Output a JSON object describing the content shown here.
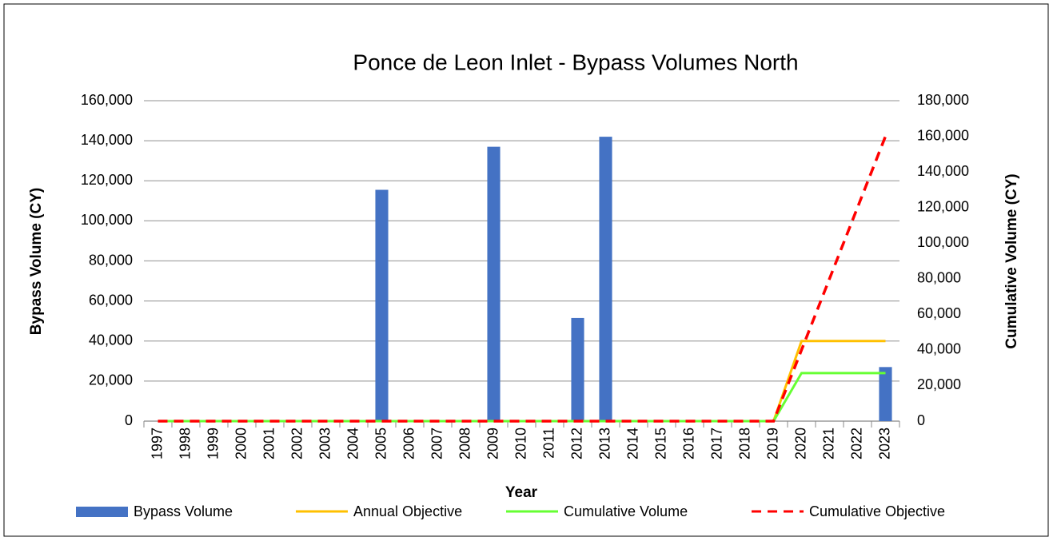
{
  "chart_data": {
    "type": "bar",
    "title": "Ponce de Leon Inlet - Bypass Volumes North",
    "x_label": "Year",
    "y_label": "Bypass Volume (CY)",
    "y2_label": "Cumulative Volume (CY)",
    "categories": [
      "1997",
      "1998",
      "1999",
      "2000",
      "2001",
      "2002",
      "2003",
      "2004",
      "2005",
      "2006",
      "2007",
      "2008",
      "2009",
      "2010",
      "2011",
      "2012",
      "2013",
      "2014",
      "2015",
      "2016",
      "2017",
      "2018",
      "2019",
      "2020",
      "2021",
      "2022",
      "2023"
    ],
    "series": [
      {
        "name": "Bypass Volume",
        "type": "bar",
        "color": "#4472c4",
        "values": [
          0,
          0,
          0,
          0,
          0,
          0,
          0,
          0,
          115500,
          0,
          0,
          0,
          137000,
          0,
          0,
          51500,
          142000,
          0,
          0,
          0,
          0,
          0,
          0,
          0,
          0,
          0,
          27000
        ]
      },
      {
        "name": "Annual Objective",
        "type": "line",
        "color": "#ffc000",
        "values": [
          0,
          0,
          0,
          0,
          0,
          0,
          0,
          0,
          0,
          0,
          0,
          0,
          0,
          0,
          0,
          0,
          0,
          0,
          0,
          0,
          0,
          0,
          0,
          40000,
          40000,
          40000,
          40000
        ]
      },
      {
        "name": "Cumulative Volume",
        "type": "line",
        "axis": "y2",
        "color": "#66ff33",
        "values": [
          0,
          0,
          0,
          0,
          0,
          0,
          0,
          0,
          0,
          0,
          0,
          0,
          0,
          0,
          0,
          0,
          0,
          0,
          0,
          0,
          0,
          0,
          0,
          27000,
          27000,
          27000,
          27000
        ]
      },
      {
        "name": "Cumulative Objective",
        "type": "line",
        "axis": "y2",
        "dashed": true,
        "color": "#ff0000",
        "values": [
          0,
          0,
          0,
          0,
          0,
          0,
          0,
          0,
          0,
          0,
          0,
          0,
          0,
          0,
          0,
          0,
          0,
          0,
          0,
          0,
          0,
          0,
          0,
          40000,
          80000,
          120000,
          160000
        ]
      }
    ],
    "ylim": [
      0,
      160000
    ],
    "yticks": [
      0,
      {
        "value": 20000,
        "label": "20,000"
      },
      {
        "value": 40000,
        "label": "40,000"
      },
      {
        "value": 60000,
        "label": "60,000"
      },
      {
        "value": 80000,
        "label": "80,000"
      },
      {
        "value": 100000,
        "label": "100,000"
      },
      {
        "value": 120000,
        "label": "120,000"
      },
      {
        "value": 140000,
        "label": "140,000"
      },
      {
        "value": 160000,
        "label": "160,000"
      }
    ],
    "y2lim": [
      0,
      180000
    ],
    "y2ticks": [
      0,
      {
        "value": 20000,
        "label": "20,000"
      },
      {
        "value": 40000,
        "label": "40,000"
      },
      {
        "value": 60000,
        "label": "60,000"
      },
      {
        "value": 80000,
        "label": "80,000"
      },
      {
        "value": 100000,
        "label": "100,000"
      },
      {
        "value": 120000,
        "label": "120,000"
      },
      {
        "value": 140000,
        "label": "140,000"
      },
      {
        "value": 160000,
        "label": "160,000"
      },
      {
        "value": 180000,
        "label": "180,000"
      }
    ],
    "grid": true,
    "legend": "bottom"
  }
}
